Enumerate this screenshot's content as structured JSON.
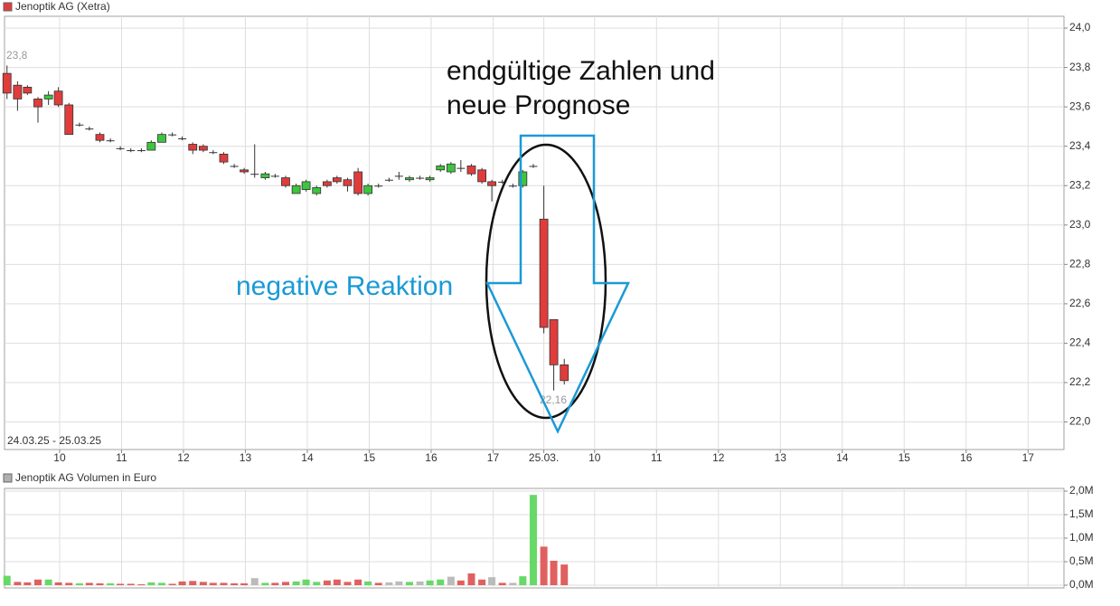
{
  "chart_data": [
    {
      "type": "candlestick",
      "title": "Jenoptik AG (Xetra)",
      "color": "#e03c3c",
      "up_color": "#3ec43e",
      "down_color": "#e03c3c",
      "range_label": "24.03.25 - 25.03.25",
      "high_label": "23,8",
      "low_label": "22,16",
      "annotations": [
        "endgültige Zahlen und",
        "neue Prognose",
        "negative Reaktion"
      ],
      "x": [
        9.15,
        9.32,
        9.48,
        9.65,
        9.82,
        9.98,
        10.15,
        10.32,
        10.48,
        10.65,
        10.82,
        10.98,
        11.15,
        11.32,
        11.48,
        11.65,
        11.82,
        11.98,
        12.15,
        12.32,
        12.48,
        12.65,
        12.82,
        12.98,
        13.15,
        13.32,
        13.48,
        13.65,
        13.82,
        13.98,
        14.15,
        14.32,
        14.48,
        14.65,
        14.82,
        14.98,
        15.15,
        15.32,
        15.48,
        15.65,
        15.82,
        15.98,
        16.15,
        16.32,
        16.48,
        16.65,
        16.82,
        16.98,
        17.15,
        17.32,
        17.48,
        17.65,
        17.82,
        17.98,
        18.15
      ],
      "open": [
        23.77,
        23.71,
        23.7,
        23.64,
        23.64,
        23.68,
        23.61,
        23.51,
        23.49,
        23.46,
        23.43,
        23.39,
        23.38,
        23.38,
        23.38,
        23.42,
        23.46,
        23.44,
        23.41,
        23.4,
        23.37,
        23.36,
        23.3,
        23.28,
        23.26,
        23.24,
        23.25,
        23.24,
        23.16,
        23.18,
        23.16,
        23.22,
        23.24,
        23.23,
        23.27,
        23.16,
        23.2,
        23.23,
        23.25,
        23.23,
        23.24,
        23.23,
        23.28,
        23.27,
        23.29,
        23.3,
        23.28,
        23.22,
        23.22,
        23.2,
        23.2,
        23.3,
        23.03,
        22.52,
        22.29
      ],
      "high": [
        23.81,
        23.73,
        23.71,
        23.65,
        23.68,
        23.7,
        23.62,
        23.52,
        23.5,
        23.47,
        23.44,
        23.4,
        23.39,
        23.39,
        23.43,
        23.47,
        23.47,
        23.45,
        23.42,
        23.41,
        23.38,
        23.37,
        23.31,
        23.29,
        23.41,
        23.27,
        23.26,
        23.25,
        23.21,
        23.23,
        23.2,
        23.23,
        23.25,
        23.24,
        23.29,
        23.21,
        23.21,
        23.24,
        23.27,
        23.25,
        23.25,
        23.25,
        23.31,
        23.32,
        23.33,
        23.31,
        23.29,
        23.23,
        23.23,
        23.21,
        23.28,
        23.31,
        23.2,
        22.52,
        22.32
      ],
      "low": [
        23.64,
        23.58,
        23.66,
        23.52,
        23.61,
        23.6,
        23.46,
        23.5,
        23.48,
        23.42,
        23.42,
        23.38,
        23.37,
        23.37,
        23.38,
        23.42,
        23.45,
        23.43,
        23.36,
        23.37,
        23.36,
        23.31,
        23.29,
        23.26,
        23.24,
        23.23,
        23.24,
        23.19,
        23.16,
        23.17,
        23.15,
        23.19,
        23.21,
        23.17,
        23.15,
        23.15,
        23.19,
        23.22,
        23.23,
        23.22,
        23.23,
        23.22,
        23.27,
        23.26,
        23.27,
        23.25,
        23.21,
        23.12,
        23.21,
        23.19,
        23.19,
        23.29,
        22.45,
        22.16,
        22.19
      ],
      "close": [
        23.67,
        23.64,
        23.67,
        23.6,
        23.66,
        23.61,
        23.46,
        23.51,
        23.49,
        23.43,
        23.43,
        23.39,
        23.38,
        23.38,
        23.42,
        23.46,
        23.46,
        23.44,
        23.38,
        23.38,
        23.37,
        23.32,
        23.3,
        23.27,
        23.26,
        23.26,
        23.25,
        23.2,
        23.2,
        23.22,
        23.19,
        23.2,
        23.22,
        23.2,
        23.16,
        23.2,
        23.2,
        23.23,
        23.25,
        23.24,
        23.24,
        23.24,
        23.3,
        23.31,
        23.29,
        23.26,
        23.22,
        23.2,
        23.22,
        23.2,
        23.27,
        23.3,
        22.48,
        22.29,
        22.21
      ],
      "xlim": [
        9.11,
        26.22
      ],
      "xticks": [
        10,
        11,
        12,
        13,
        14,
        15,
        16,
        17,
        {
          "value": 17.82,
          "label": "25.03."
        },
        {
          "value": 18.64,
          "label": "10"
        },
        {
          "value": 19.64,
          "label": "11"
        },
        {
          "value": 20.64,
          "label": "12"
        },
        {
          "value": 21.64,
          "label": "13"
        },
        {
          "value": 22.64,
          "label": "14"
        },
        {
          "value": 23.64,
          "label": "15"
        },
        {
          "value": 24.64,
          "label": "16"
        },
        {
          "value": 25.64,
          "label": "17"
        }
      ],
      "ylim": [
        21.86,
        24.06
      ],
      "yticks": [
        {
          "value": 22.0,
          "label": "22,0"
        },
        {
          "value": 22.2,
          "label": "22,2"
        },
        {
          "value": 22.4,
          "label": "22,4"
        },
        {
          "value": 22.6,
          "label": "22,6"
        },
        {
          "value": 22.8,
          "label": "22,8"
        },
        {
          "value": 23.0,
          "label": "23,0"
        },
        {
          "value": 23.2,
          "label": "23,2"
        },
        {
          "value": 23.4,
          "label": "23,4"
        },
        {
          "value": 23.6,
          "label": "23,6"
        },
        {
          "value": 23.8,
          "label": "23,8"
        },
        {
          "value": 24.0,
          "label": "24,0"
        }
      ],
      "grid": true
    },
    {
      "type": "bar",
      "title": "Jenoptik AG Volumen in Euro",
      "color": "#b0b0b0",
      "x": [
        9.15,
        9.32,
        9.48,
        9.65,
        9.82,
        9.98,
        10.15,
        10.32,
        10.48,
        10.65,
        10.82,
        10.98,
        11.15,
        11.32,
        11.48,
        11.65,
        11.82,
        11.98,
        12.15,
        12.32,
        12.48,
        12.65,
        12.82,
        12.98,
        13.15,
        13.32,
        13.48,
        13.65,
        13.82,
        13.98,
        14.15,
        14.32,
        14.48,
        14.65,
        14.82,
        14.98,
        15.15,
        15.32,
        15.48,
        15.65,
        15.82,
        15.98,
        16.15,
        16.32,
        16.48,
        16.65,
        16.82,
        16.98,
        17.15,
        17.32,
        17.48,
        17.65,
        17.82,
        17.98,
        18.15
      ],
      "values": [
        0.2,
        0.07,
        0.06,
        0.12,
        0.12,
        0.06,
        0.05,
        0.04,
        0.05,
        0.04,
        0.04,
        0.03,
        0.03,
        0.02,
        0.06,
        0.05,
        0.03,
        0.08,
        0.09,
        0.07,
        0.05,
        0.05,
        0.04,
        0.04,
        0.15,
        0.05,
        0.05,
        0.07,
        0.08,
        0.12,
        0.07,
        0.1,
        0.12,
        0.07,
        0.12,
        0.08,
        0.05,
        0.06,
        0.08,
        0.07,
        0.08,
        0.1,
        0.12,
        0.18,
        0.1,
        0.25,
        0.12,
        0.17,
        0.05,
        0.05,
        0.19,
        1.92,
        0.82,
        0.52,
        0.44
      ],
      "colors": [
        "#66d966",
        "#e06060",
        "#e06060",
        "#e06060",
        "#66d966",
        "#e06060",
        "#e06060",
        "#66d966",
        "#e06060",
        "#e06060",
        "#66d966",
        "#e06060",
        "#e06060",
        "#e06060",
        "#66d966",
        "#66d966",
        "#e06060",
        "#e06060",
        "#e06060",
        "#e06060",
        "#e06060",
        "#e06060",
        "#e06060",
        "#e06060",
        "#bbbbbb",
        "#66d966",
        "#e06060",
        "#e06060",
        "#66d966",
        "#66d966",
        "#66d966",
        "#e06060",
        "#e06060",
        "#e06060",
        "#e06060",
        "#66d966",
        "#e06060",
        "#bbbbbb",
        "#bbbbbb",
        "#66d966",
        "#bbbbbb",
        "#66d966",
        "#66d966",
        "#bbbbbb",
        "#e06060",
        "#e06060",
        "#e06060",
        "#bbbbbb",
        "#e06060",
        "#bbbbbb",
        "#66d966",
        "#66d966",
        "#e06060",
        "#e06060",
        "#e06060"
      ],
      "xlim": [
        9.11,
        26.22
      ],
      "ylim": [
        0,
        2
      ],
      "yticks": [
        {
          "value": 0,
          "label": "0,0M"
        },
        {
          "value": 0.5,
          "label": "0,5M"
        },
        {
          "value": 1,
          "label": "1,0M"
        },
        {
          "value": 1.5,
          "label": "1,5M"
        },
        {
          "value": 2,
          "label": "2,0M"
        }
      ],
      "grid": true
    }
  ]
}
